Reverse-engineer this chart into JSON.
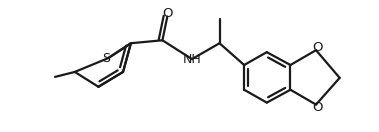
{
  "bg_color": "#ffffff",
  "line_color": "#1a1a1a",
  "line_width": 1.6,
  "figsize": [
    3.79,
    1.32
  ],
  "dpi": 100,
  "xlim": [
    0,
    10
  ],
  "ylim": [
    0,
    3.5
  ]
}
